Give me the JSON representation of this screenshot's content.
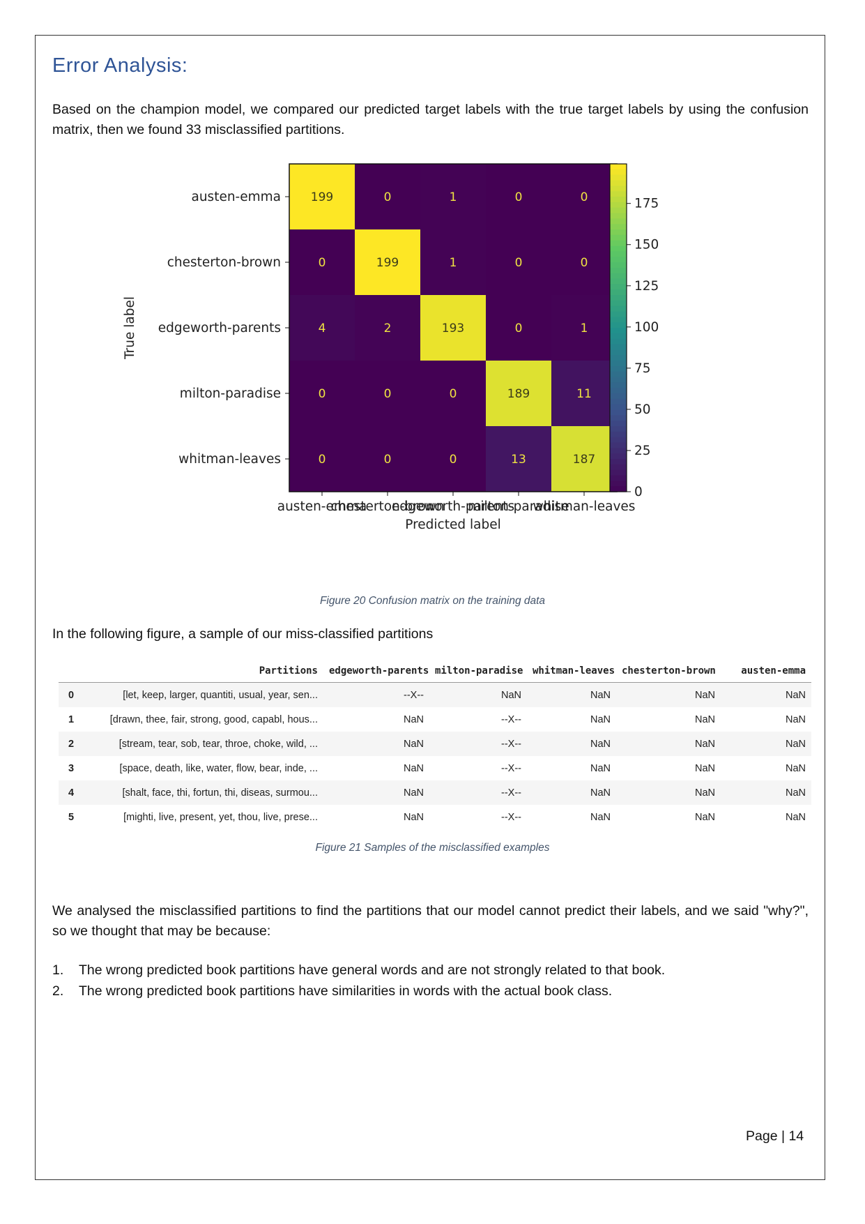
{
  "heading": "Error Analysis:",
  "paragraph_1": "Based on the champion model, we compared our predicted target labels with the true target labels by using the confusion matrix, then we found 33 misclassified partitions.",
  "figure_20_caption": "Figure 20 Confusion matrix on the training data",
  "paragraph_2": "In the following figure, a sample of our miss-classified partitions",
  "figure_21_caption": "Figure 21 Samples of the misclassified examples",
  "paragraph_3": "We analysed the misclassified partitions to find the partitions that our model cannot predict their labels, and we said \"why?\", so we thought that may be because:",
  "list": [
    {
      "num": "1.",
      "text": "The wrong predicted book partitions have general words and are not strongly related to that book."
    },
    {
      "num": "2.",
      "text": "The wrong predicted book partitions have similarities in words with the actual book class."
    }
  ],
  "page_label": "Page | 14",
  "table": {
    "headers": [
      "",
      "Partitions",
      "edgeworth-parents",
      "milton-paradise",
      "whitman-leaves",
      "chesterton-brown",
      "austen-emma"
    ],
    "rows": [
      {
        "idx": "0",
        "partitions": "[let, keep, larger, quantiti, usual, year, sen...",
        "edgeworth": "--X--",
        "milton": "NaN",
        "whitman": "NaN",
        "chesterton": "NaN",
        "austen": "NaN"
      },
      {
        "idx": "1",
        "partitions": "[drawn, thee, fair, strong, good, capabl, hous...",
        "edgeworth": "NaN",
        "milton": "--X--",
        "whitman": "NaN",
        "chesterton": "NaN",
        "austen": "NaN"
      },
      {
        "idx": "2",
        "partitions": "[stream, tear, sob, tear, throe, choke, wild, ...",
        "edgeworth": "NaN",
        "milton": "--X--",
        "whitman": "NaN",
        "chesterton": "NaN",
        "austen": "NaN"
      },
      {
        "idx": "3",
        "partitions": "[space, death, like, water, flow, bear, inde, ...",
        "edgeworth": "NaN",
        "milton": "--X--",
        "whitman": "NaN",
        "chesterton": "NaN",
        "austen": "NaN"
      },
      {
        "idx": "4",
        "partitions": "[shalt, face, thi, fortun, thi, diseas, surmou...",
        "edgeworth": "NaN",
        "milton": "--X--",
        "whitman": "NaN",
        "chesterton": "NaN",
        "austen": "NaN"
      },
      {
        "idx": "5",
        "partitions": "[mighti, live, present, yet, thou, live, prese...",
        "edgeworth": "NaN",
        "milton": "--X--",
        "whitman": "NaN",
        "chesterton": "NaN",
        "austen": "NaN"
      }
    ]
  },
  "chart_data": {
    "type": "heatmap",
    "title": "",
    "xlabel": "Predicted label",
    "ylabel": "True label",
    "x_categories": [
      "austen-emma",
      "chesterton-brown",
      "edgeworth-parents",
      "milton-paradise",
      "whitman-leaves"
    ],
    "y_categories": [
      "austen-emma",
      "chesterton-brown",
      "edgeworth-parents",
      "milton-paradise",
      "whitman-leaves"
    ],
    "values": [
      [
        199,
        0,
        1,
        0,
        0
      ],
      [
        0,
        199,
        1,
        0,
        0
      ],
      [
        4,
        2,
        193,
        0,
        1
      ],
      [
        0,
        0,
        0,
        189,
        11
      ],
      [
        0,
        0,
        0,
        13,
        187
      ]
    ],
    "colormap": "viridis",
    "colorbar_range": [
      0,
      199
    ],
    "colorbar_ticks": [
      0,
      25,
      50,
      75,
      100,
      125,
      150,
      175
    ],
    "grid": false
  }
}
